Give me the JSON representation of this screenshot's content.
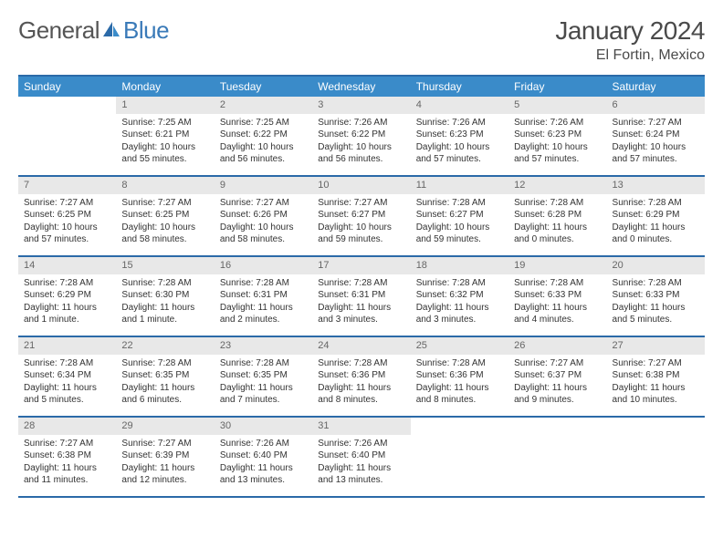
{
  "logo": {
    "part1": "General",
    "part2": "Blue"
  },
  "title": "January 2024",
  "location": "El Fortin, Mexico",
  "colors": {
    "header_bg": "#3a8bc9",
    "header_text": "#ffffff",
    "border": "#2b6aa8",
    "daynum_bg": "#e8e8e8",
    "daynum_text": "#666666",
    "body_text": "#333333",
    "accent": "#3a7ab8"
  },
  "day_names": [
    "Sunday",
    "Monday",
    "Tuesday",
    "Wednesday",
    "Thursday",
    "Friday",
    "Saturday"
  ],
  "weeks": [
    [
      {
        "n": "",
        "sunrise": "",
        "sunset": "",
        "daylight": ""
      },
      {
        "n": "1",
        "sunrise": "Sunrise: 7:25 AM",
        "sunset": "Sunset: 6:21 PM",
        "daylight": "Daylight: 10 hours and 55 minutes."
      },
      {
        "n": "2",
        "sunrise": "Sunrise: 7:25 AM",
        "sunset": "Sunset: 6:22 PM",
        "daylight": "Daylight: 10 hours and 56 minutes."
      },
      {
        "n": "3",
        "sunrise": "Sunrise: 7:26 AM",
        "sunset": "Sunset: 6:22 PM",
        "daylight": "Daylight: 10 hours and 56 minutes."
      },
      {
        "n": "4",
        "sunrise": "Sunrise: 7:26 AM",
        "sunset": "Sunset: 6:23 PM",
        "daylight": "Daylight: 10 hours and 57 minutes."
      },
      {
        "n": "5",
        "sunrise": "Sunrise: 7:26 AM",
        "sunset": "Sunset: 6:23 PM",
        "daylight": "Daylight: 10 hours and 57 minutes."
      },
      {
        "n": "6",
        "sunrise": "Sunrise: 7:27 AM",
        "sunset": "Sunset: 6:24 PM",
        "daylight": "Daylight: 10 hours and 57 minutes."
      }
    ],
    [
      {
        "n": "7",
        "sunrise": "Sunrise: 7:27 AM",
        "sunset": "Sunset: 6:25 PM",
        "daylight": "Daylight: 10 hours and 57 minutes."
      },
      {
        "n": "8",
        "sunrise": "Sunrise: 7:27 AM",
        "sunset": "Sunset: 6:25 PM",
        "daylight": "Daylight: 10 hours and 58 minutes."
      },
      {
        "n": "9",
        "sunrise": "Sunrise: 7:27 AM",
        "sunset": "Sunset: 6:26 PM",
        "daylight": "Daylight: 10 hours and 58 minutes."
      },
      {
        "n": "10",
        "sunrise": "Sunrise: 7:27 AM",
        "sunset": "Sunset: 6:27 PM",
        "daylight": "Daylight: 10 hours and 59 minutes."
      },
      {
        "n": "11",
        "sunrise": "Sunrise: 7:28 AM",
        "sunset": "Sunset: 6:27 PM",
        "daylight": "Daylight: 10 hours and 59 minutes."
      },
      {
        "n": "12",
        "sunrise": "Sunrise: 7:28 AM",
        "sunset": "Sunset: 6:28 PM",
        "daylight": "Daylight: 11 hours and 0 minutes."
      },
      {
        "n": "13",
        "sunrise": "Sunrise: 7:28 AM",
        "sunset": "Sunset: 6:29 PM",
        "daylight": "Daylight: 11 hours and 0 minutes."
      }
    ],
    [
      {
        "n": "14",
        "sunrise": "Sunrise: 7:28 AM",
        "sunset": "Sunset: 6:29 PM",
        "daylight": "Daylight: 11 hours and 1 minute."
      },
      {
        "n": "15",
        "sunrise": "Sunrise: 7:28 AM",
        "sunset": "Sunset: 6:30 PM",
        "daylight": "Daylight: 11 hours and 1 minute."
      },
      {
        "n": "16",
        "sunrise": "Sunrise: 7:28 AM",
        "sunset": "Sunset: 6:31 PM",
        "daylight": "Daylight: 11 hours and 2 minutes."
      },
      {
        "n": "17",
        "sunrise": "Sunrise: 7:28 AM",
        "sunset": "Sunset: 6:31 PM",
        "daylight": "Daylight: 11 hours and 3 minutes."
      },
      {
        "n": "18",
        "sunrise": "Sunrise: 7:28 AM",
        "sunset": "Sunset: 6:32 PM",
        "daylight": "Daylight: 11 hours and 3 minutes."
      },
      {
        "n": "19",
        "sunrise": "Sunrise: 7:28 AM",
        "sunset": "Sunset: 6:33 PM",
        "daylight": "Daylight: 11 hours and 4 minutes."
      },
      {
        "n": "20",
        "sunrise": "Sunrise: 7:28 AM",
        "sunset": "Sunset: 6:33 PM",
        "daylight": "Daylight: 11 hours and 5 minutes."
      }
    ],
    [
      {
        "n": "21",
        "sunrise": "Sunrise: 7:28 AM",
        "sunset": "Sunset: 6:34 PM",
        "daylight": "Daylight: 11 hours and 5 minutes."
      },
      {
        "n": "22",
        "sunrise": "Sunrise: 7:28 AM",
        "sunset": "Sunset: 6:35 PM",
        "daylight": "Daylight: 11 hours and 6 minutes."
      },
      {
        "n": "23",
        "sunrise": "Sunrise: 7:28 AM",
        "sunset": "Sunset: 6:35 PM",
        "daylight": "Daylight: 11 hours and 7 minutes."
      },
      {
        "n": "24",
        "sunrise": "Sunrise: 7:28 AM",
        "sunset": "Sunset: 6:36 PM",
        "daylight": "Daylight: 11 hours and 8 minutes."
      },
      {
        "n": "25",
        "sunrise": "Sunrise: 7:28 AM",
        "sunset": "Sunset: 6:36 PM",
        "daylight": "Daylight: 11 hours and 8 minutes."
      },
      {
        "n": "26",
        "sunrise": "Sunrise: 7:27 AM",
        "sunset": "Sunset: 6:37 PM",
        "daylight": "Daylight: 11 hours and 9 minutes."
      },
      {
        "n": "27",
        "sunrise": "Sunrise: 7:27 AM",
        "sunset": "Sunset: 6:38 PM",
        "daylight": "Daylight: 11 hours and 10 minutes."
      }
    ],
    [
      {
        "n": "28",
        "sunrise": "Sunrise: 7:27 AM",
        "sunset": "Sunset: 6:38 PM",
        "daylight": "Daylight: 11 hours and 11 minutes."
      },
      {
        "n": "29",
        "sunrise": "Sunrise: 7:27 AM",
        "sunset": "Sunset: 6:39 PM",
        "daylight": "Daylight: 11 hours and 12 minutes."
      },
      {
        "n": "30",
        "sunrise": "Sunrise: 7:26 AM",
        "sunset": "Sunset: 6:40 PM",
        "daylight": "Daylight: 11 hours and 13 minutes."
      },
      {
        "n": "31",
        "sunrise": "Sunrise: 7:26 AM",
        "sunset": "Sunset: 6:40 PM",
        "daylight": "Daylight: 11 hours and 13 minutes."
      },
      {
        "n": "",
        "sunrise": "",
        "sunset": "",
        "daylight": ""
      },
      {
        "n": "",
        "sunrise": "",
        "sunset": "",
        "daylight": ""
      },
      {
        "n": "",
        "sunrise": "",
        "sunset": "",
        "daylight": ""
      }
    ]
  ]
}
